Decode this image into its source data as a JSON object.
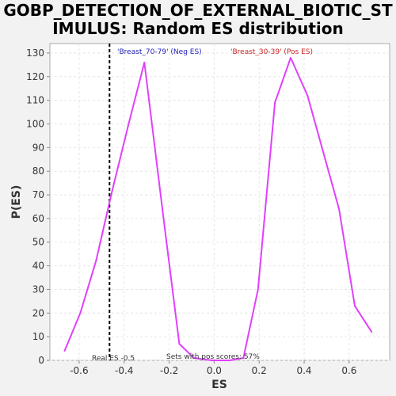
{
  "chart_data": {
    "type": "line",
    "title_lines": [
      "GOBP_DETECTION_OF_EXTERNAL_BIOTIC_ST",
      "IMULUS: Random ES distribution"
    ],
    "xlabel": "ES",
    "ylabel": "P(ES)",
    "xlim": [
      -0.73,
      0.78
    ],
    "ylim": [
      0,
      134
    ],
    "xticks": [
      -0.6,
      -0.4,
      -0.2,
      0.0,
      0.2,
      0.4,
      0.6
    ],
    "xtick_labels": [
      "-0.6",
      "-0.4",
      "-0.2",
      "0.0",
      "0.2",
      "0.4",
      "0.6"
    ],
    "yticks": [
      0,
      10,
      20,
      30,
      40,
      50,
      60,
      70,
      80,
      90,
      100,
      110,
      120,
      130
    ],
    "ytick_labels": [
      "0",
      "10",
      "20",
      "30",
      "40",
      "50",
      "60",
      "70",
      "80",
      "90",
      "100",
      "110",
      "120",
      "130"
    ],
    "grid": true,
    "series": [
      {
        "color": "#e040fb",
        "x": [
          -0.665,
          -0.595,
          -0.525,
          -0.455,
          -0.38,
          -0.31,
          -0.225,
          -0.155,
          -0.09,
          -0.01,
          0.07,
          0.13,
          0.195,
          0.27,
          0.34,
          0.415,
          0.485,
          0.555,
          0.625,
          0.7
        ],
        "y": [
          4,
          20,
          42,
          71,
          100,
          126,
          60,
          7,
          1,
          0,
          0,
          1,
          30,
          109,
          128,
          112,
          88,
          64,
          23,
          12
        ]
      }
    ],
    "real_es": {
      "x": -0.5,
      "label": "Real ES -0.5"
    },
    "neg_label": {
      "text": "'Breast_70-79' (Neg ES)",
      "color": "#2222bb"
    },
    "pos_label": {
      "text": "'Breast_30-39' (Pos ES)",
      "color": "#cc2222"
    },
    "pos_scores_label": "Sets with pos scores: 57%"
  }
}
